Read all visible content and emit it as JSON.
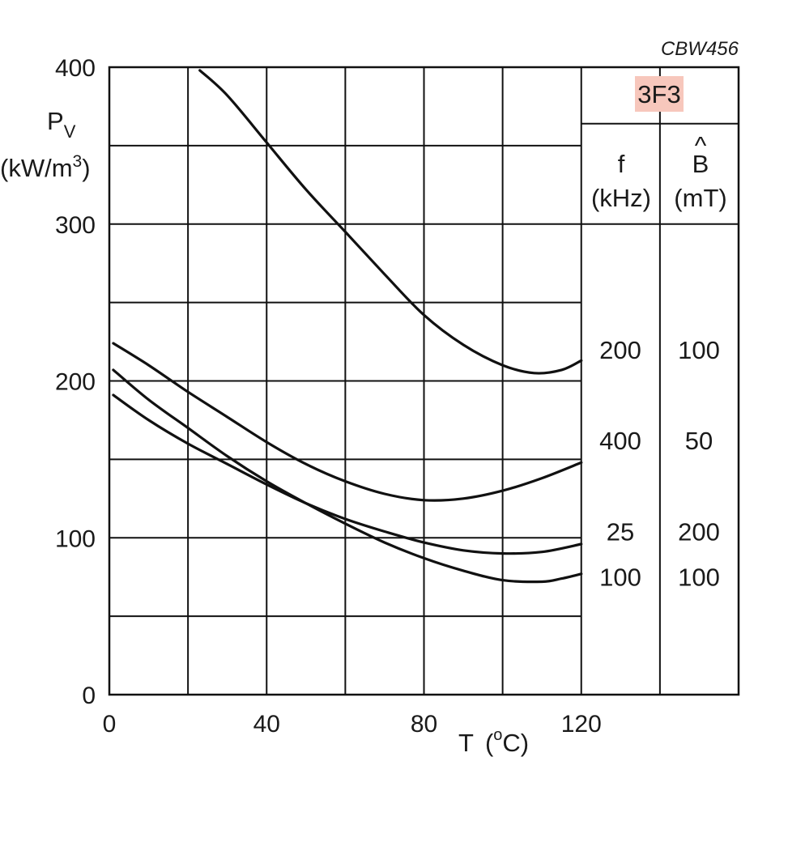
{
  "chart_data": {
    "type": "line",
    "figure_code": "CBW456",
    "material": "3F3",
    "colors": {
      "line": "#111111",
      "grid": "#111111",
      "material_highlight": "#f7c7bc"
    },
    "xlabel": {
      "main": "T",
      "unit_open": "(",
      "unit_sup": "o",
      "unit_close": "C)"
    },
    "ylabel": {
      "main": "P",
      "sub": "V",
      "unit_open": "(kW/m",
      "unit_sup": "3",
      "unit_close": ")"
    },
    "xlim": [
      0,
      160
    ],
    "ylim": [
      0,
      400
    ],
    "grid": true,
    "x_ticks": [
      {
        "value": 0,
        "label": "0"
      },
      {
        "value": 40,
        "label": "40"
      },
      {
        "value": 80,
        "label": "80"
      },
      {
        "value": 120,
        "label": "120"
      }
    ],
    "y_ticks": [
      {
        "value": 0,
        "label": "0"
      },
      {
        "value": 100,
        "label": "100"
      },
      {
        "value": 200,
        "label": "200"
      },
      {
        "value": 300,
        "label": "300"
      },
      {
        "value": 400,
        "label": "400"
      }
    ],
    "legend_headers": {
      "f_symbol": "f",
      "f_unit": "(kHz)",
      "b_symbol": "B",
      "b_hat": "^",
      "b_unit": "(mT)"
    },
    "series": [
      {
        "f": "200",
        "b": "100",
        "legend_y": 220,
        "points": [
          [
            23,
            398
          ],
          [
            30,
            382
          ],
          [
            40,
            352
          ],
          [
            50,
            322
          ],
          [
            60,
            295
          ],
          [
            70,
            268
          ],
          [
            80,
            242
          ],
          [
            90,
            223
          ],
          [
            100,
            210
          ],
          [
            108,
            205
          ],
          [
            115,
            207
          ],
          [
            120,
            213
          ]
        ]
      },
      {
        "f": "400",
        "b": "50",
        "legend_y": 162,
        "points": [
          [
            1,
            224
          ],
          [
            10,
            210
          ],
          [
            20,
            193
          ],
          [
            30,
            177
          ],
          [
            40,
            161
          ],
          [
            50,
            147
          ],
          [
            60,
            136
          ],
          [
            70,
            128
          ],
          [
            80,
            124
          ],
          [
            90,
            125
          ],
          [
            100,
            130
          ],
          [
            110,
            138
          ],
          [
            120,
            148
          ]
        ]
      },
      {
        "f": "25",
        "b": "200",
        "legend_y": 104,
        "points": [
          [
            1,
            191
          ],
          [
            10,
            175
          ],
          [
            20,
            160
          ],
          [
            30,
            147
          ],
          [
            40,
            134
          ],
          [
            50,
            122
          ],
          [
            60,
            112
          ],
          [
            70,
            104
          ],
          [
            80,
            97
          ],
          [
            90,
            92
          ],
          [
            100,
            90
          ],
          [
            110,
            91
          ],
          [
            120,
            96
          ]
        ]
      },
      {
        "f": "100",
        "b": "100",
        "legend_y": 75,
        "points": [
          [
            1,
            207
          ],
          [
            10,
            188
          ],
          [
            20,
            170
          ],
          [
            30,
            152
          ],
          [
            40,
            136
          ],
          [
            50,
            122
          ],
          [
            60,
            109
          ],
          [
            70,
            97
          ],
          [
            80,
            87
          ],
          [
            90,
            79
          ],
          [
            100,
            73
          ],
          [
            110,
            72
          ],
          [
            115,
            74
          ],
          [
            120,
            77
          ]
        ]
      }
    ]
  }
}
